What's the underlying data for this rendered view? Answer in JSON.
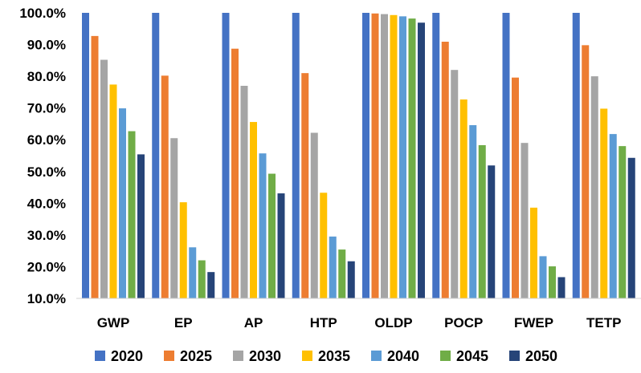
{
  "chart_data": {
    "type": "bar",
    "title": "",
    "xlabel": "",
    "ylabel": "",
    "ylim": [
      10,
      100
    ],
    "y_ticks": [
      "10.0%",
      "20.0%",
      "30.0%",
      "40.0%",
      "50.0%",
      "60.0%",
      "70.0%",
      "80.0%",
      "90.0%",
      "100.0%"
    ],
    "grid": false,
    "legend_position": "bottom",
    "categories": [
      "GWP",
      "EP",
      "AP",
      "HTP",
      "OLDP",
      "POCP",
      "FWEP",
      "TETP"
    ],
    "series": [
      {
        "name": "2020",
        "color": "#4472C4",
        "values": [
          100,
          100,
          100,
          100,
          100,
          100,
          100,
          100
        ]
      },
      {
        "name": "2025",
        "color": "#ED7D31",
        "values": [
          92.7,
          80.2,
          88.7,
          81.0,
          99.8,
          90.9,
          79.6,
          89.8
        ]
      },
      {
        "name": "2030",
        "color": "#A5A5A5",
        "values": [
          85.2,
          60.5,
          77.0,
          62.2,
          99.6,
          82.0,
          59.0,
          80.0
        ]
      },
      {
        "name": "2035",
        "color": "#FFC000",
        "values": [
          77.4,
          40.3,
          65.6,
          43.3,
          99.3,
          72.7,
          38.6,
          69.8
        ]
      },
      {
        "name": "2040",
        "color": "#5B9BD5",
        "values": [
          69.9,
          26.1,
          55.7,
          29.5,
          98.9,
          64.6,
          23.3,
          61.8
        ]
      },
      {
        "name": "2045",
        "color": "#70AD47",
        "values": [
          62.7,
          22.0,
          49.3,
          25.4,
          98.2,
          58.3,
          20.1,
          58.0
        ]
      },
      {
        "name": "2050",
        "color": "#264478",
        "values": [
          55.4,
          18.3,
          43.1,
          21.7,
          96.9,
          51.9,
          16.7,
          54.3
        ]
      }
    ]
  }
}
